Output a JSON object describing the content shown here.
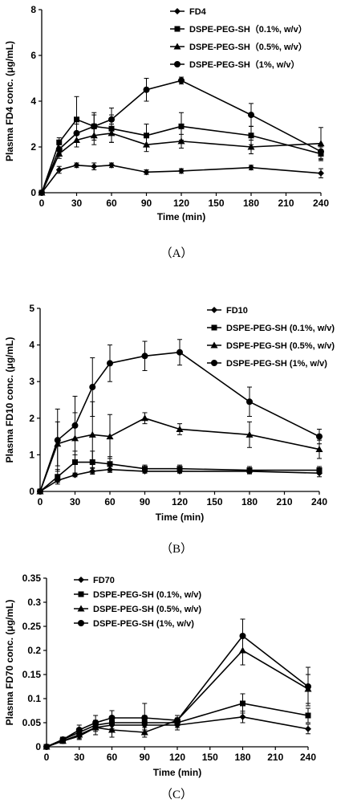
{
  "chart_data": [
    {
      "id": "A",
      "type": "line",
      "caption": "（A）",
      "xlabel": "Time (min)",
      "ylabel": "Plasma FD4 conc. (μg/mL)",
      "xlim": [
        0,
        240
      ],
      "ylim": [
        0,
        8
      ],
      "xticks": [
        0,
        30,
        60,
        90,
        120,
        150,
        180,
        210,
        240
      ],
      "yticks": [
        0,
        2,
        4,
        6,
        8
      ],
      "legend_position": "top-right",
      "series": [
        {
          "name": "FD4",
          "marker": "diamond",
          "x": [
            0,
            15,
            30,
            45,
            60,
            90,
            120,
            180,
            240
          ],
          "y": [
            0,
            1.0,
            1.2,
            1.15,
            1.2,
            0.9,
            0.95,
            1.1,
            0.85
          ],
          "err": [
            0,
            0.15,
            0.1,
            0.15,
            0.1,
            0.1,
            0.1,
            0.1,
            0.2
          ]
        },
        {
          "name": "DSPE-PEG-SH（0.1%, w/v）",
          "marker": "square",
          "x": [
            0,
            15,
            30,
            45,
            60,
            90,
            120,
            180,
            240
          ],
          "y": [
            0,
            2.2,
            3.2,
            2.9,
            2.8,
            2.5,
            2.9,
            2.5,
            1.7
          ],
          "err": [
            0,
            0.2,
            1.0,
            0.6,
            0.6,
            0.5,
            0.6,
            0.4,
            0.3
          ]
        },
        {
          "name": "DSPE-PEG-SH（0.5%, w/v）",
          "marker": "triangle",
          "x": [
            0,
            15,
            30,
            45,
            60,
            90,
            120,
            180,
            240
          ],
          "y": [
            0,
            1.7,
            2.3,
            2.5,
            2.6,
            2.1,
            2.25,
            2.0,
            2.15
          ],
          "err": [
            0,
            0.2,
            0.3,
            0.4,
            0.4,
            0.3,
            0.3,
            0.3,
            0.7
          ]
        },
        {
          "name": "DSPE-PEG-SH（1%, w/v）",
          "marker": "circle",
          "x": [
            0,
            15,
            30,
            45,
            60,
            90,
            120,
            180,
            240
          ],
          "y": [
            0,
            1.9,
            2.6,
            2.9,
            3.2,
            4.5,
            4.9,
            3.4,
            1.8
          ],
          "err": [
            0,
            0.2,
            0.4,
            0.5,
            0.5,
            0.5,
            0.15,
            0.5,
            0.3
          ]
        }
      ]
    },
    {
      "id": "B",
      "type": "line",
      "caption": "（B）",
      "xlabel": "Time (min)",
      "ylabel": "Plasma FD10 conc. (μg/mL)",
      "xlim": [
        0,
        240
      ],
      "ylim": [
        0,
        5
      ],
      "xticks": [
        0,
        30,
        60,
        90,
        120,
        150,
        180,
        210,
        240
      ],
      "yticks": [
        0,
        1,
        2,
        3,
        4,
        5
      ],
      "legend_position": "top-right",
      "series": [
        {
          "name": "FD10",
          "marker": "diamond",
          "x": [
            0,
            15,
            30,
            45,
            60,
            90,
            120,
            180,
            240
          ],
          "y": [
            0,
            0.3,
            0.45,
            0.55,
            0.6,
            0.55,
            0.55,
            0.55,
            0.5
          ],
          "err": [
            0,
            0.05,
            0.05,
            0.08,
            0.08,
            0.05,
            0.05,
            0.05,
            0.1
          ]
        },
        {
          "name": "DSPE-PEG-SH (0.1%, w/v)",
          "marker": "square",
          "x": [
            0,
            15,
            30,
            45,
            60,
            90,
            120,
            180,
            240
          ],
          "y": [
            0,
            0.4,
            0.8,
            0.8,
            0.75,
            0.62,
            0.62,
            0.58,
            0.58
          ],
          "err": [
            0,
            0.2,
            0.3,
            0.3,
            0.2,
            0.1,
            0.1,
            0.1,
            0.1
          ]
        },
        {
          "name": "DSPE-PEG-SH (0.5%, w/v)",
          "marker": "triangle",
          "x": [
            0,
            15,
            30,
            45,
            60,
            90,
            120,
            180,
            240
          ],
          "y": [
            0,
            1.3,
            1.45,
            1.55,
            1.5,
            2.0,
            1.7,
            1.55,
            1.15
          ],
          "err": [
            0,
            0.6,
            0.7,
            0.9,
            0.6,
            0.15,
            0.15,
            0.35,
            0.25
          ]
        },
        {
          "name": "DSPE-PEG-SH (1%, w/v)",
          "marker": "circle",
          "x": [
            0,
            15,
            30,
            45,
            60,
            90,
            120,
            180,
            240
          ],
          "y": [
            0,
            1.4,
            1.8,
            2.85,
            3.5,
            3.7,
            3.8,
            2.45,
            1.5
          ],
          "err": [
            0,
            0.85,
            0.8,
            0.8,
            0.5,
            0.4,
            0.35,
            0.4,
            0.2
          ]
        }
      ]
    },
    {
      "id": "C",
      "type": "line",
      "caption": "（C）",
      "xlabel": "Time (min)",
      "ylabel": "Plasma FD70 conc. (μg/mL)",
      "xlim": [
        0,
        240
      ],
      "ylim": [
        0,
        0.35
      ],
      "xticks": [
        0,
        30,
        60,
        90,
        120,
        150,
        180,
        210,
        240
      ],
      "yticks": [
        0,
        0.05,
        0.1,
        0.15,
        0.2,
        0.25,
        0.3,
        0.35
      ],
      "legend_position": "top-left",
      "series": [
        {
          "name": "FD70",
          "marker": "diamond",
          "x": [
            0,
            15,
            30,
            45,
            60,
            90,
            120,
            180,
            240
          ],
          "y": [
            0,
            0.012,
            0.022,
            0.04,
            0.045,
            0.045,
            0.045,
            0.062,
            0.037
          ],
          "err": [
            0,
            0.003,
            0.005,
            0.008,
            0.01,
            0.01,
            0.01,
            0.012,
            0.01
          ]
        },
        {
          "name": "DSPE-PEG-SH (0.1%, w/v)",
          "marker": "square",
          "x": [
            0,
            15,
            30,
            45,
            60,
            90,
            120,
            180,
            240
          ],
          "y": [
            0,
            0.015,
            0.03,
            0.045,
            0.05,
            0.05,
            0.05,
            0.09,
            0.065
          ],
          "err": [
            0,
            0.005,
            0.008,
            0.01,
            0.012,
            0.015,
            0.01,
            0.02,
            0.015
          ]
        },
        {
          "name": "DSPE-PEG-SH (0.5%, w/v)",
          "marker": "triangle",
          "x": [
            0,
            15,
            30,
            45,
            60,
            90,
            120,
            180,
            240
          ],
          "y": [
            0,
            0.012,
            0.025,
            0.04,
            0.035,
            0.03,
            0.055,
            0.2,
            0.12
          ],
          "err": [
            0,
            0.005,
            0.01,
            0.015,
            0.015,
            0.01,
            0.01,
            0.03,
            0.03
          ]
        },
        {
          "name": "DSPE-PEG-SH (1%, w/v)",
          "marker": "circle",
          "x": [
            0,
            15,
            30,
            45,
            60,
            90,
            120,
            180,
            240
          ],
          "y": [
            0,
            0.015,
            0.035,
            0.05,
            0.06,
            0.06,
            0.055,
            0.23,
            0.125
          ],
          "err": [
            0,
            0.005,
            0.01,
            0.015,
            0.015,
            0.03,
            0.01,
            0.035,
            0.04
          ]
        }
      ]
    }
  ]
}
